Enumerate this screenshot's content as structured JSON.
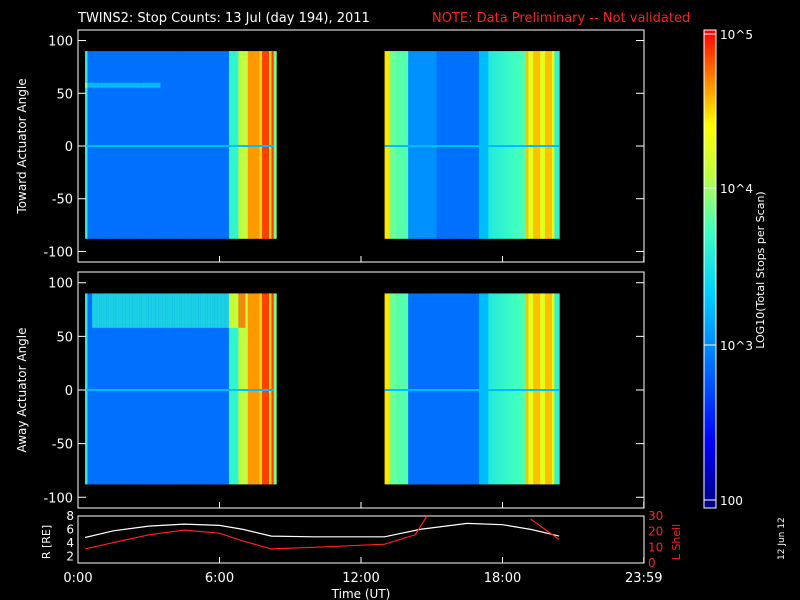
{
  "header": {
    "title": "TWINS2: Stop Counts: 13 Jul (day 194), 2011",
    "note": "NOTE: Data Preliminary -- Not validated",
    "note_color": "#ff2020"
  },
  "footer": {
    "date_stamp": "12 Jun 12"
  },
  "chart_data": [
    {
      "type": "heatmap",
      "ylabel": "Toward Actuator Angle",
      "ylim": [
        -110,
        110
      ],
      "yticks": [
        "100",
        "50",
        "0",
        "-50",
        "-100"
      ],
      "x_hours_range": [
        0,
        24
      ],
      "data_blocks_hours": [
        [
          0.3,
          8.3
        ],
        [
          13.0,
          20.4
        ]
      ],
      "angle_range": [
        -88,
        90
      ]
    },
    {
      "type": "heatmap",
      "ylabel": "Away Actuator Angle",
      "ylim": [
        -110,
        110
      ],
      "yticks": [
        "100",
        "50",
        "0",
        "-50",
        "-100"
      ],
      "x_hours_range": [
        0,
        24
      ],
      "data_blocks_hours": [
        [
          0.3,
          8.3
        ],
        [
          13.0,
          20.4
        ]
      ],
      "angle_range": [
        -88,
        90
      ]
    },
    {
      "type": "line",
      "xlabel": "Time (UT)",
      "xticks": [
        "0:00",
        "6:00",
        "12:00",
        "18:00",
        "23:59"
      ],
      "ylabel_left": "R [RE]",
      "ylabel_right": "L Shell",
      "ylim_left": [
        1,
        8
      ],
      "ylim_right": [
        0,
        30
      ],
      "yticks_left": [
        "2",
        "4",
        "6",
        "8"
      ],
      "yticks_right": [
        "0",
        "10",
        "20",
        "30"
      ],
      "series": [
        {
          "color": "#ffffff",
          "x_hours": [
            0.3,
            1.5,
            3,
            4.5,
            6,
            7,
            8.2,
            10,
            13,
            14.5,
            16.5,
            18,
            19.2,
            20.4
          ],
          "R": [
            4.8,
            5.8,
            6.5,
            6.8,
            6.6,
            6.0,
            5.0,
            4.9,
            4.9,
            6.0,
            6.9,
            6.7,
            6.0,
            5.0
          ]
        },
        {
          "color": "#ff2020",
          "x_hours": [
            0.3,
            1.5,
            3,
            4.5,
            6,
            7,
            8.2,
            10,
            13,
            14.3,
            14.8,
            null,
            19.2,
            20.4
          ],
          "L": [
            9,
            13,
            18,
            21,
            19,
            14,
            9,
            10,
            12,
            18,
            31,
            null,
            28,
            15
          ]
        }
      ]
    }
  ],
  "colorbar": {
    "label": "LOG10(Total Stops per Scan)",
    "ticks": [
      "10^5",
      "10^4",
      "10^3",
      "100"
    ],
    "colors": [
      "#000080",
      "#0000ff",
      "#0080ff",
      "#00ffff",
      "#80ff80",
      "#ffff00",
      "#ff8000",
      "#ff0000"
    ]
  }
}
